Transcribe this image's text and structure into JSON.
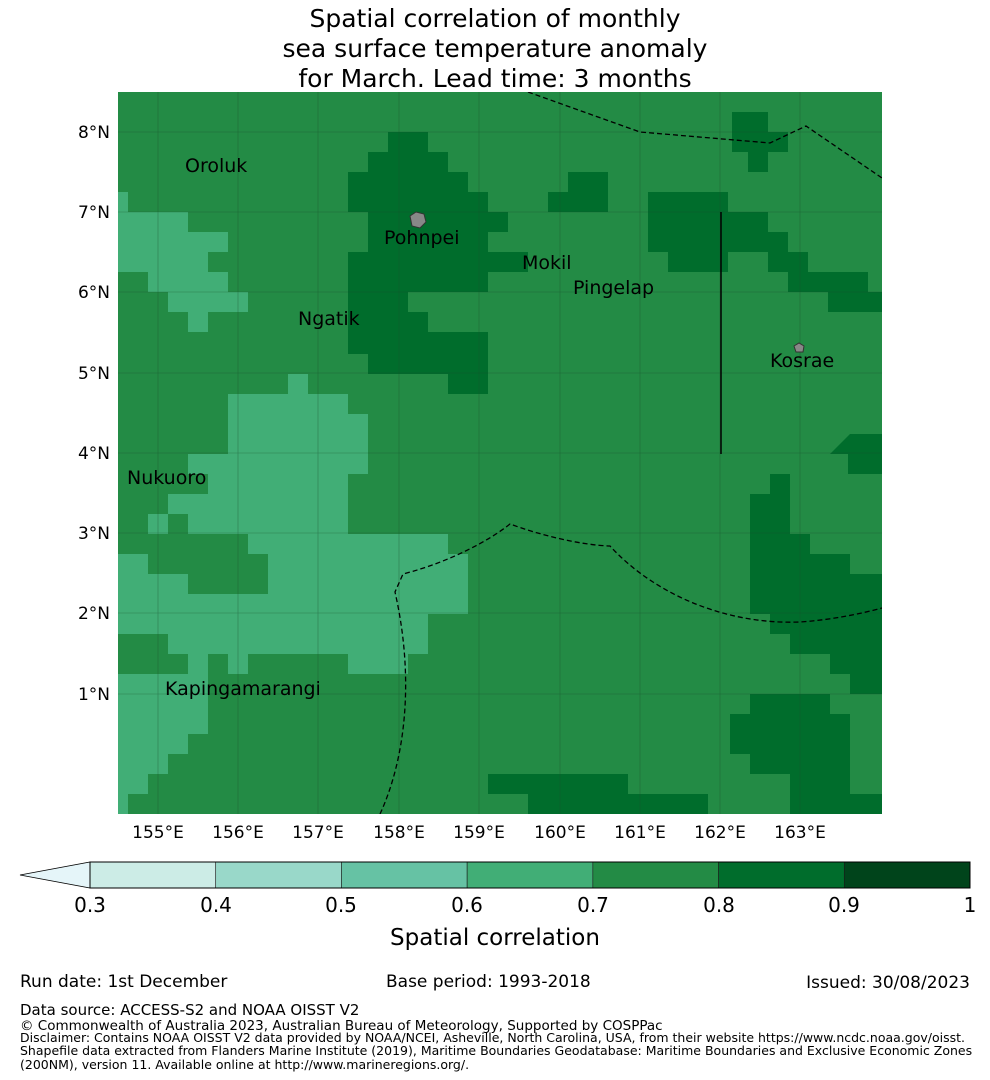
{
  "title": "Spatial correlation of monthly\nsea surface temperature anomaly\n for March. Lead time: 3 months",
  "map": {
    "lat_labels": [
      "8°N",
      "7°N",
      "6°N",
      "5°N",
      "4°N",
      "3°N",
      "2°N",
      "1°N"
    ],
    "lon_labels": [
      "155°E",
      "156°E",
      "157°E",
      "158°E",
      "159°E",
      "160°E",
      "161°E",
      "162°E",
      "163°E"
    ],
    "places": [
      "Oroluk",
      "Pohnpei",
      "Mokil",
      "Pingelap",
      "Ngatik",
      "Kosrae",
      "Nukuoro",
      "Kapingamarangi"
    ]
  },
  "colorbar": {
    "ticks": [
      "0.3",
      "0.4",
      "0.5",
      "0.6",
      "0.7",
      "0.8",
      "0.9",
      "1"
    ],
    "colors": [
      "#e5f5f9",
      "#ccece6",
      "#99d8c9",
      "#66c2a4",
      "#41ae76",
      "#238b45",
      "#006d2c",
      "#00441b"
    ],
    "label": "Spatial correlation"
  },
  "footer": {
    "run_date": "Run date: 1st December",
    "base_period": "Base period: 1993-2018",
    "issued": "Issued: 30/08/2023",
    "data_source": "Data source: ACCESS-S2 and NOAA OISST V2",
    "copyright": "© Commonwealth of Australia 2023, Australian Bureau of Meteorology, Supported by COSPPac",
    "disclaimer1": "Disclaimer: Contains NOAA OISST V2 data provided by NOAA/NCEI, Asheville, North Carolina, USA, from their website https://www.ncdc.noaa.gov/oisst.",
    "disclaimer2": "Shapefile data extracted from Flanders Marine Institute (2019), Maritime Boundaries Geodatabase: Maritime Boundaries and Exclusive Economic Zones",
    "disclaimer3": "(200NM), version 11. Available online at http://www.marineregions.org/."
  }
}
